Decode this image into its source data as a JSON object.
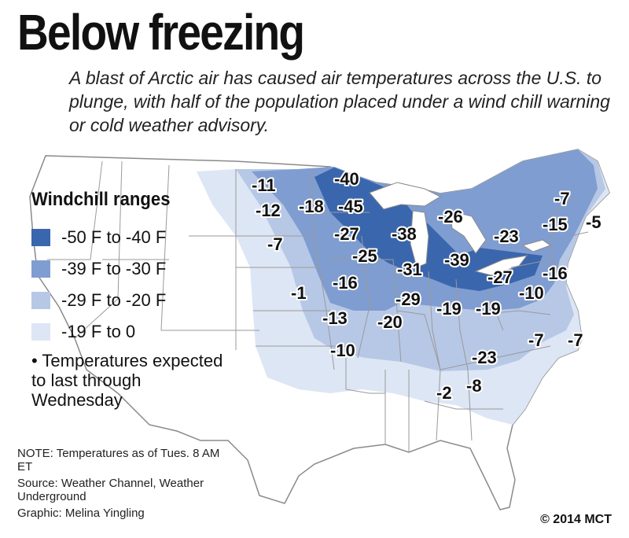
{
  "title": "Below freezing",
  "subtitle": "A blast of Arctic air has caused air temperatures across the U.S. to plunge, with half of the population placed under a wind chill warning or cold weather advisory.",
  "legend": {
    "title": "Windchill ranges",
    "items": [
      {
        "label": "-50 F to -40 F",
        "color": "#3a66ad"
      },
      {
        "label": "-39 F to -30 F",
        "color": "#7f9dd0"
      },
      {
        "label": "-29 F to -20 F",
        "color": "#b7c8e6"
      },
      {
        "label": "-19 F to 0",
        "color": "#dde6f4"
      }
    ],
    "note": "• Temperatures expected to last through Wednesday"
  },
  "footnotes": {
    "note": "NOTE: Temperatures as of Tues. 8 AM ET",
    "source": "Source: Weather Channel, Weather Underground",
    "graphic": "Graphic: Melina Yingling"
  },
  "credit": "© 2014 MCT",
  "temperatures": [
    "-11",
    "-40",
    "-12",
    "-18",
    "-45",
    "-26",
    "-7",
    "-5",
    "-15",
    "-7",
    "-27",
    "-38",
    "-23",
    "-25",
    "-39",
    "-31",
    "-27",
    "-16",
    "-1",
    "-16",
    "-29",
    "-19",
    "-19",
    "-10",
    "-13",
    "-20",
    "-10",
    "-7",
    "-7",
    "-23",
    "-8",
    "-2"
  ]
}
